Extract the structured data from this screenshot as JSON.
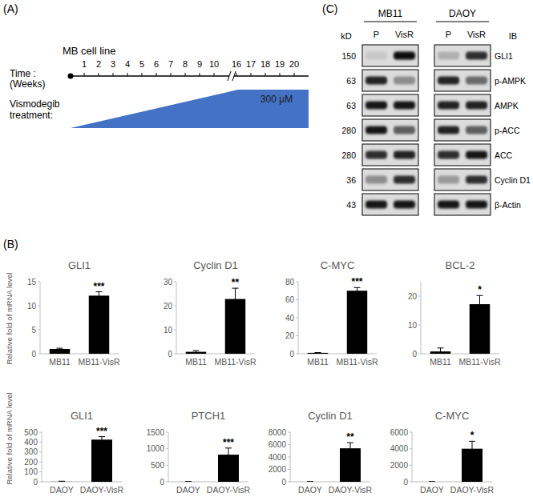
{
  "panel_labels": [
    "(A)",
    "(B)",
    "(C)"
  ],
  "timeline": {
    "title": "MB cell line",
    "time_label": [
      "Time :",
      "(Weeks)"
    ],
    "weeks": [
      1,
      2,
      3,
      4,
      5,
      6,
      7,
      8,
      9,
      10,
      16,
      17,
      18,
      19,
      20
    ],
    "treatment_label": [
      "Vismodegib",
      "treatment:"
    ],
    "dose_label": "300 μM",
    "color": "#4472c4"
  },
  "blot": {
    "kd_label": "kD",
    "ib_label": "IB",
    "groups": [
      {
        "name": "MB11",
        "lanes": [
          "P",
          "VisR"
        ]
      },
      {
        "name": "DAOY",
        "lanes": [
          "P",
          "VisR"
        ]
      }
    ],
    "rows": [
      {
        "kd": 150,
        "label": "GLI1",
        "bands": [
          0.15,
          0.95,
          0.25,
          0.8
        ]
      },
      {
        "kd": 63,
        "label": "p-AMPK",
        "bands": [
          0.85,
          0.4,
          0.85,
          0.55
        ]
      },
      {
        "kd": 63,
        "label": "AMPK",
        "bands": [
          0.9,
          0.9,
          0.85,
          0.85
        ]
      },
      {
        "kd": 280,
        "label": "p-ACC",
        "bands": [
          0.9,
          0.6,
          0.85,
          0.6
        ]
      },
      {
        "kd": 280,
        "label": "ACC",
        "bands": [
          0.8,
          0.85,
          0.8,
          0.9
        ]
      },
      {
        "kd": 36,
        "label": "Cyclin D1",
        "bands": [
          0.4,
          0.8,
          0.35,
          0.8
        ]
      },
      {
        "kd": 43,
        "label": "β-Actin",
        "bands": [
          0.9,
          0.9,
          0.9,
          0.9
        ]
      }
    ]
  },
  "chart_data": [
    {
      "type": "bar",
      "title": "GLI1",
      "y_label": "Relative fold of mRNA level",
      "categories": [
        "MB11",
        "MB11-VisR"
      ],
      "values": [
        1,
        12.1
      ],
      "errors": [
        0.15,
        0.8
      ],
      "color": "#000000",
      "ylim": [
        0,
        15
      ],
      "yticks": [
        0,
        5,
        10,
        15
      ],
      "annotations": [
        "***"
      ]
    },
    {
      "type": "bar",
      "title": "Cyclin D1",
      "categories": [
        "MB11",
        "MB11-VisR"
      ],
      "values": [
        0.8,
        22.8
      ],
      "errors": [
        0.5,
        4.5
      ],
      "color": "#000000",
      "ylim": [
        0,
        30
      ],
      "yticks": [
        0,
        10,
        20,
        30
      ],
      "annotations": [
        "**"
      ]
    },
    {
      "type": "bar",
      "title": "C-MYC",
      "categories": [
        "MB11",
        "MB11-VisR"
      ],
      "values": [
        1,
        70
      ],
      "errors": [
        0.3,
        3.5
      ],
      "color": "#000000",
      "ylim": [
        0,
        80
      ],
      "yticks": [
        0,
        20,
        40,
        60,
        80
      ],
      "annotations": [
        "***"
      ]
    },
    {
      "type": "bar",
      "title": "BCL-2",
      "categories": [
        "MB11",
        "MB11-VisR"
      ],
      "values": [
        0.8,
        17.2
      ],
      "errors": [
        1.2,
        3
      ],
      "color": "#000000",
      "ylim": [
        0,
        25
      ],
      "yticks": [
        0,
        10,
        20
      ],
      "annotations": [
        "*"
      ]
    },
    {
      "type": "bar",
      "title": "GLI1",
      "y_label": "Relative fold of mRNA level",
      "categories": [
        "DAOY",
        "DAOY-VisR"
      ],
      "values": [
        1,
        425
      ],
      "errors": [
        5,
        30
      ],
      "color": "#000000",
      "ylim": [
        0,
        500
      ],
      "yticks": [
        0,
        100,
        200,
        300,
        400,
        500
      ],
      "annotations": [
        "***"
      ]
    },
    {
      "type": "bar",
      "title": "PTCH1",
      "categories": [
        "DAOY",
        "DAOY-VisR"
      ],
      "values": [
        1,
        820
      ],
      "errors": [
        5,
        200
      ],
      "color": "#000000",
      "ylim": [
        0,
        1500
      ],
      "yticks": [
        0,
        500,
        1000,
        1500
      ],
      "annotations": [
        "***"
      ]
    },
    {
      "type": "bar",
      "title": "Cyclin D1",
      "categories": [
        "DAOY",
        "DAOY-VisR"
      ],
      "values": [
        1,
        5400
      ],
      "errors": [
        20,
        900
      ],
      "color": "#000000",
      "ylim": [
        0,
        8000
      ],
      "yticks": [
        0,
        2000,
        4000,
        6000,
        8000
      ],
      "annotations": [
        "**"
      ]
    },
    {
      "type": "bar",
      "title": "C-MYC",
      "categories": [
        "DAOY",
        "DAOY-VisR"
      ],
      "values": [
        1,
        4000
      ],
      "errors": [
        10,
        900
      ],
      "color": "#000000",
      "ylim": [
        0,
        6000
      ],
      "yticks": [
        0,
        2000,
        4000,
        6000
      ],
      "annotations": [
        "*"
      ]
    }
  ]
}
